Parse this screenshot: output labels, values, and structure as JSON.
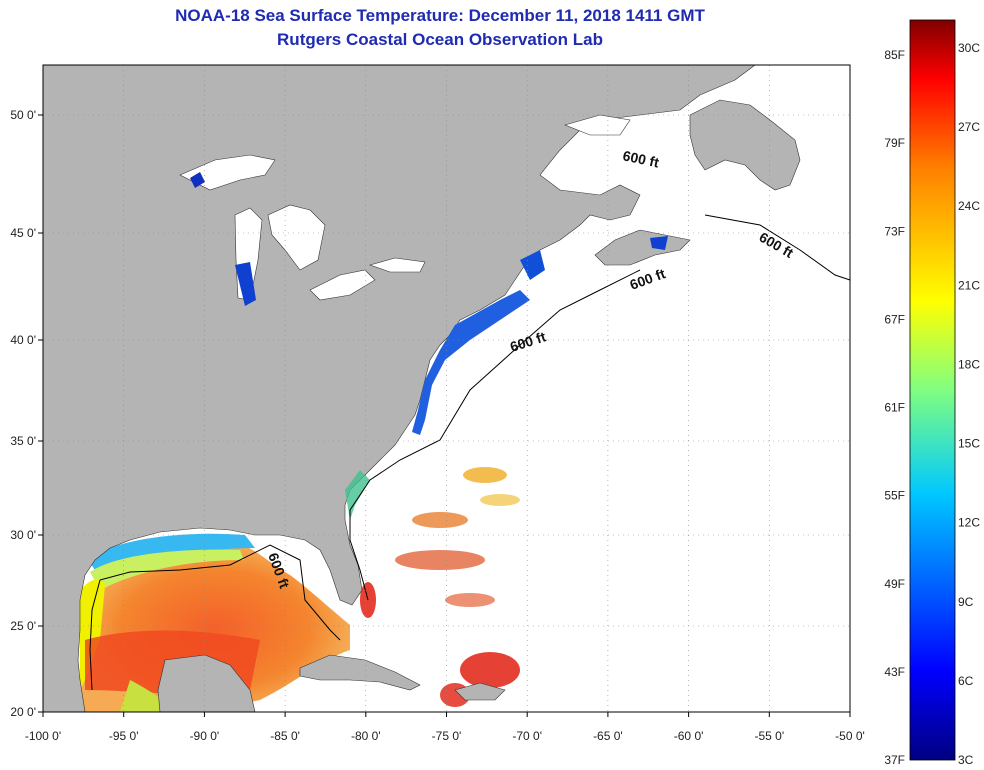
{
  "title": {
    "line1": "NOAA-18 Sea Surface Temperature:  December 11, 2018 1411 GMT",
    "line2": "Rutgers Coastal Ocean Observation Lab"
  },
  "axes": {
    "lon_labels": [
      "-100 0'",
      "-95 0'",
      "-90 0'",
      "-85 0'",
      "-80 0'",
      "-75 0'",
      "-70 0'",
      "-65 0'",
      "-60 0'",
      "-55 0'",
      "-50 0'"
    ],
    "lat_labels": [
      "50 0'",
      "45 0'",
      "40 0'",
      "35 0'",
      "30 0'",
      "25 0'",
      "20 0'"
    ]
  },
  "contour_labels": [
    "600 ft",
    "600 ft",
    "600 ft",
    "600 ft",
    "600 ft"
  ],
  "colorbar": {
    "fahrenheit": [
      "85F",
      "79F",
      "73F",
      "67F",
      "61F",
      "55F",
      "49F",
      "43F",
      "37F"
    ],
    "celsius": [
      "30C",
      "27C",
      "24C",
      "21C",
      "18C",
      "15C",
      "12C",
      "9C",
      "6C",
      "3C"
    ],
    "colors": [
      "#000080",
      "#0000ff",
      "#0080ff",
      "#00ffff",
      "#80ff80",
      "#ffff00",
      "#ff8000",
      "#ff0000",
      "#800000"
    ]
  },
  "colors": {
    "land": "#b4b4b4",
    "ocean": "#ffffff",
    "title": "#1f2bb0"
  }
}
